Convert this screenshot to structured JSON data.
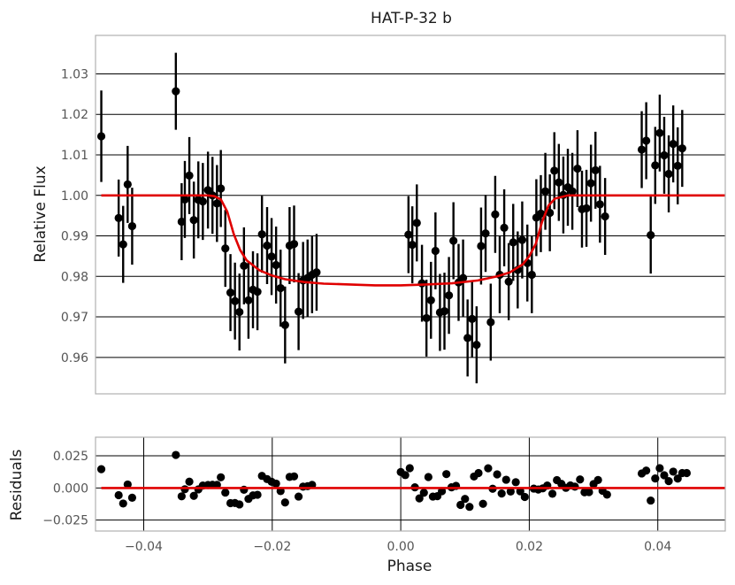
{
  "chart_data": [
    {
      "type": "scatter",
      "title": "HAT-P-32 b",
      "xlabel": "",
      "ylabel": "Relative Flux",
      "xlim": [
        -0.0475,
        0.0505
      ],
      "ylim": [
        0.951,
        1.0395
      ],
      "yticks": [
        0.96,
        0.97,
        0.98,
        0.99,
        1.0,
        1.01,
        1.02,
        1.03
      ],
      "ytick_labels": [
        "0.96",
        "0.97",
        "0.98",
        "0.99",
        "1.00",
        "1.01",
        "1.02",
        "1.03"
      ],
      "grid": "horizontal",
      "error_bars": true,
      "series": [
        {
          "color": "#000000",
          "points": [
            [
              -0.0466,
              1.0146,
              0.0113
            ],
            [
              -0.0439,
              0.9944,
              0.0095
            ],
            [
              -0.0432,
              0.9879,
              0.0095
            ],
            [
              -0.0425,
              1.0027,
              0.0095
            ],
            [
              -0.0418,
              0.9924,
              0.0095
            ],
            [
              -0.035,
              1.0257,
              0.0095
            ],
            [
              -0.0341,
              0.9935,
              0.0095
            ],
            [
              -0.0336,
              0.999,
              0.0095
            ],
            [
              -0.0329,
              1.0049,
              0.0095
            ],
            [
              -0.0322,
              0.9939,
              0.0095
            ],
            [
              -0.0315,
              0.9989,
              0.0095
            ],
            [
              -0.0308,
              0.9985,
              0.0095
            ],
            [
              -0.03,
              1.0013,
              0.0095
            ],
            [
              -0.0293,
              1.0,
              0.0095
            ],
            [
              -0.0286,
              0.998,
              0.0095
            ],
            [
              -0.028,
              1.0017,
              0.0095
            ],
            [
              -0.0273,
              0.9869,
              0.0095
            ],
            [
              -0.0265,
              0.976,
              0.0095
            ],
            [
              -0.0258,
              0.9739,
              0.0095
            ],
            [
              -0.0251,
              0.9712,
              0.0095
            ],
            [
              -0.0244,
              0.9826,
              0.0095
            ],
            [
              -0.0237,
              0.9741,
              0.0095
            ],
            [
              -0.023,
              0.9767,
              0.0095
            ],
            [
              -0.0223,
              0.9762,
              0.0095
            ],
            [
              -0.0216,
              0.9904,
              0.0095
            ],
            [
              -0.0208,
              0.9876,
              0.0095
            ],
            [
              -0.0201,
              0.9849,
              0.0095
            ],
            [
              -0.0194,
              0.9828,
              0.0095
            ],
            [
              -0.0187,
              0.9771,
              0.0095
            ],
            [
              -0.018,
              0.968,
              0.0095
            ],
            [
              -0.0173,
              0.9876,
              0.0095
            ],
            [
              -0.0166,
              0.988,
              0.0095
            ],
            [
              -0.0159,
              0.9713,
              0.0095
            ],
            [
              -0.0152,
              0.979,
              0.0095
            ],
            [
              -0.0145,
              0.9796,
              0.0095
            ],
            [
              -0.0138,
              0.9804,
              0.0095
            ],
            [
              -0.0131,
              0.981,
              0.0095
            ],
            [
              0.0012,
              0.9903,
              0.0095
            ],
            [
              0.0018,
              0.9878,
              0.0095
            ],
            [
              0.0025,
              0.9932,
              0.0095
            ],
            [
              0.0033,
              0.9783,
              0.0095
            ],
            [
              0.004,
              0.9697,
              0.0095
            ],
            [
              0.0047,
              0.9741,
              0.0095
            ],
            [
              0.0054,
              0.9863,
              0.0095
            ],
            [
              0.0061,
              0.9711,
              0.0095
            ],
            [
              0.0068,
              0.9714,
              0.0095
            ],
            [
              0.0075,
              0.9753,
              0.0095
            ],
            [
              0.0082,
              0.9888,
              0.0095
            ],
            [
              0.009,
              0.9785,
              0.0095
            ],
            [
              0.0097,
              0.9796,
              0.0095
            ],
            [
              0.0104,
              0.9648,
              0.0095
            ],
            [
              0.0111,
              0.9695,
              0.0095
            ],
            [
              0.0118,
              0.9631,
              0.0095
            ],
            [
              0.0125,
              0.9875,
              0.0095
            ],
            [
              0.0132,
              0.9906,
              0.0095
            ],
            [
              0.014,
              0.9687,
              0.0095
            ],
            [
              0.0147,
              0.9953,
              0.0095
            ],
            [
              0.0154,
              0.9804,
              0.0095
            ],
            [
              0.0161,
              0.992,
              0.0095
            ],
            [
              0.0168,
              0.9787,
              0.0095
            ],
            [
              0.0175,
              0.9884,
              0.0095
            ],
            [
              0.0182,
              0.9816,
              0.0095
            ],
            [
              0.0189,
              0.989,
              0.0095
            ],
            [
              0.0197,
              0.9833,
              0.0095
            ],
            [
              0.0204,
              0.9804,
              0.0095
            ],
            [
              0.0211,
              0.9945,
              0.0095
            ],
            [
              0.0218,
              0.9955,
              0.0095
            ],
            [
              0.0225,
              1.001,
              0.0095
            ],
            [
              0.0232,
              0.9957,
              0.0095
            ],
            [
              0.0239,
              1.0061,
              0.0095
            ],
            [
              0.0246,
              1.0032,
              0.0095
            ],
            [
              0.0253,
              1.0001,
              0.0095
            ],
            [
              0.026,
              1.002,
              0.0095
            ],
            [
              0.0267,
              1.001,
              0.0095
            ],
            [
              0.0275,
              1.0066,
              0.0095
            ],
            [
              0.0282,
              0.9966,
              0.0095
            ],
            [
              0.0289,
              0.9968,
              0.0095
            ],
            [
              0.0296,
              1.003,
              0.0095
            ],
            [
              0.0303,
              1.0062,
              0.0095
            ],
            [
              0.031,
              0.9978,
              0.0095
            ],
            [
              0.0318,
              0.9948,
              0.0095
            ],
            [
              0.0375,
              1.0113,
              0.0095
            ],
            [
              0.0382,
              1.0135,
              0.0095
            ],
            [
              0.0389,
              0.9902,
              0.0095
            ],
            [
              0.0396,
              1.0074,
              0.0095
            ],
            [
              0.0403,
              1.0154,
              0.0095
            ],
            [
              0.041,
              1.0099,
              0.0095
            ],
            [
              0.0417,
              1.0053,
              0.0095
            ],
            [
              0.0424,
              1.0127,
              0.0095
            ],
            [
              0.0431,
              1.0073,
              0.0095
            ],
            [
              0.0438,
              1.0116,
              0.0095
            ]
          ]
        },
        {
          "type": "line",
          "color": "#e00000",
          "x": [
            -0.0466,
            -0.034,
            -0.032,
            -0.03,
            -0.029,
            -0.028,
            -0.027,
            -0.026,
            -0.025,
            -0.024,
            -0.022,
            -0.02,
            -0.018,
            -0.015,
            -0.012,
            -0.008,
            -0.004,
            0.0,
            0.004,
            0.008,
            0.012,
            0.015,
            0.017,
            0.019,
            0.02,
            0.021,
            0.022,
            0.023,
            0.024,
            0.026,
            0.03,
            0.0505
          ],
          "y": [
            1.0,
            1.0,
            1.0,
            1.0,
            0.9998,
            0.999,
            0.996,
            0.9905,
            0.9865,
            0.984,
            0.9815,
            0.9802,
            0.9793,
            0.9786,
            0.9782,
            0.978,
            0.9778,
            0.9778,
            0.978,
            0.9783,
            0.979,
            0.98,
            0.981,
            0.983,
            0.985,
            0.988,
            0.9935,
            0.9975,
            0.9992,
            1.0,
            1.0,
            1.0
          ]
        }
      ]
    },
    {
      "type": "scatter",
      "title": "",
      "xlabel": "Phase",
      "ylabel": "Residuals",
      "xlim": [
        -0.0475,
        0.0505
      ],
      "ylim": [
        -0.0335,
        0.0395
      ],
      "yticks": [
        -0.025,
        0.0,
        0.025
      ],
      "ytick_labels": [
        "−0.025",
        "0.000",
        "0.025"
      ],
      "xticks": [
        -0.04,
        -0.02,
        0.0,
        0.02,
        0.04
      ],
      "xtick_labels": [
        "−0.04",
        "−0.02",
        "0.00",
        "0.02",
        "0.04"
      ],
      "grid": "both",
      "series": [
        {
          "color": "#000000",
          "points": [
            [
              -0.0466,
              0.0146
            ],
            [
              -0.0439,
              -0.0056
            ],
            [
              -0.0432,
              -0.0121
            ],
            [
              -0.0425,
              0.0027
            ],
            [
              -0.0418,
              -0.0076
            ],
            [
              -0.035,
              0.0257
            ],
            [
              -0.0341,
              -0.0065
            ],
            [
              -0.0336,
              -0.001
            ],
            [
              -0.0329,
              0.0049
            ],
            [
              -0.0322,
              -0.0061
            ],
            [
              -0.0315,
              -0.0011
            ],
            [
              -0.0308,
              0.0019
            ],
            [
              -0.03,
              0.0023
            ],
            [
              -0.0293,
              0.0025
            ],
            [
              -0.0286,
              0.0024
            ],
            [
              -0.028,
              0.0083
            ],
            [
              -0.0273,
              -0.0036
            ],
            [
              -0.0265,
              -0.0118
            ],
            [
              -0.0258,
              -0.0117
            ],
            [
              -0.0251,
              -0.0128
            ],
            [
              -0.0244,
              -0.0014
            ],
            [
              -0.0237,
              -0.0085
            ],
            [
              -0.023,
              -0.0058
            ],
            [
              -0.0223,
              -0.0053
            ],
            [
              -0.0216,
              0.0094
            ],
            [
              -0.0208,
              0.0069
            ],
            [
              -0.0201,
              0.0048
            ],
            [
              -0.0194,
              0.0034
            ],
            [
              -0.0187,
              -0.0024
            ],
            [
              -0.018,
              -0.0113
            ],
            [
              -0.0173,
              0.0086
            ],
            [
              -0.0166,
              0.009
            ],
            [
              -0.0159,
              -0.0067
            ],
            [
              -0.0152,
              0.001
            ],
            [
              -0.0145,
              0.0014
            ],
            [
              -0.0138,
              0.0024
            ],
            [
              0.0,
              0.0124
            ],
            [
              0.0007,
              0.01
            ],
            [
              0.0014,
              0.0154
            ],
            [
              0.0022,
              0.0005
            ],
            [
              0.0029,
              -0.0081
            ],
            [
              0.0036,
              -0.0037
            ],
            [
              0.0043,
              0.0085
            ],
            [
              0.005,
              -0.0067
            ],
            [
              0.0057,
              -0.0064
            ],
            [
              0.0064,
              -0.0025
            ],
            [
              0.0071,
              0.0108
            ],
            [
              0.0079,
              0.0005
            ],
            [
              0.0086,
              0.0016
            ],
            [
              0.0093,
              -0.0132
            ],
            [
              0.01,
              -0.0085
            ],
            [
              0.0107,
              -0.0147
            ],
            [
              0.0114,
              0.0089
            ],
            [
              0.0121,
              0.0116
            ],
            [
              0.0128,
              -0.0123
            ],
            [
              0.0136,
              0.0153
            ],
            [
              0.0143,
              -0.0006
            ],
            [
              0.015,
              0.0106
            ],
            [
              0.0157,
              -0.0043
            ],
            [
              0.0164,
              0.0064
            ],
            [
              0.0171,
              -0.0028
            ],
            [
              0.0179,
              0.0045
            ],
            [
              0.0186,
              -0.0026
            ],
            [
              0.0193,
              -0.007
            ],
            [
              0.0207,
              -0.0005
            ],
            [
              0.0214,
              -0.0012
            ],
            [
              0.0221,
              -0.0003
            ],
            [
              0.0228,
              0.0019
            ],
            [
              0.0236,
              -0.0045
            ],
            [
              0.0243,
              0.0061
            ],
            [
              0.025,
              0.0032
            ],
            [
              0.0257,
              0.0001
            ],
            [
              0.0264,
              0.002
            ],
            [
              0.0271,
              0.001
            ],
            [
              0.0279,
              0.0066
            ],
            [
              0.0286,
              -0.0034
            ],
            [
              0.0293,
              -0.0032
            ],
            [
              0.03,
              0.003
            ],
            [
              0.0307,
              0.0062
            ],
            [
              0.0314,
              -0.0022
            ],
            [
              0.0321,
              -0.0052
            ],
            [
              0.0375,
              0.0113
            ],
            [
              0.0382,
              0.0135
            ],
            [
              0.0389,
              -0.0098
            ],
            [
              0.0396,
              0.0074
            ],
            [
              0.0403,
              0.0154
            ],
            [
              0.041,
              0.0099
            ],
            [
              0.0417,
              0.0053
            ],
            [
              0.0424,
              0.0127
            ],
            [
              0.0431,
              0.0073
            ],
            [
              0.0438,
              0.0116
            ],
            [
              0.0445,
              0.0116
            ]
          ]
        },
        {
          "type": "line",
          "color": "#e00000",
          "x": [
            -0.0466,
            0.0505
          ],
          "y": [
            0.0,
            0.0
          ]
        }
      ]
    }
  ]
}
